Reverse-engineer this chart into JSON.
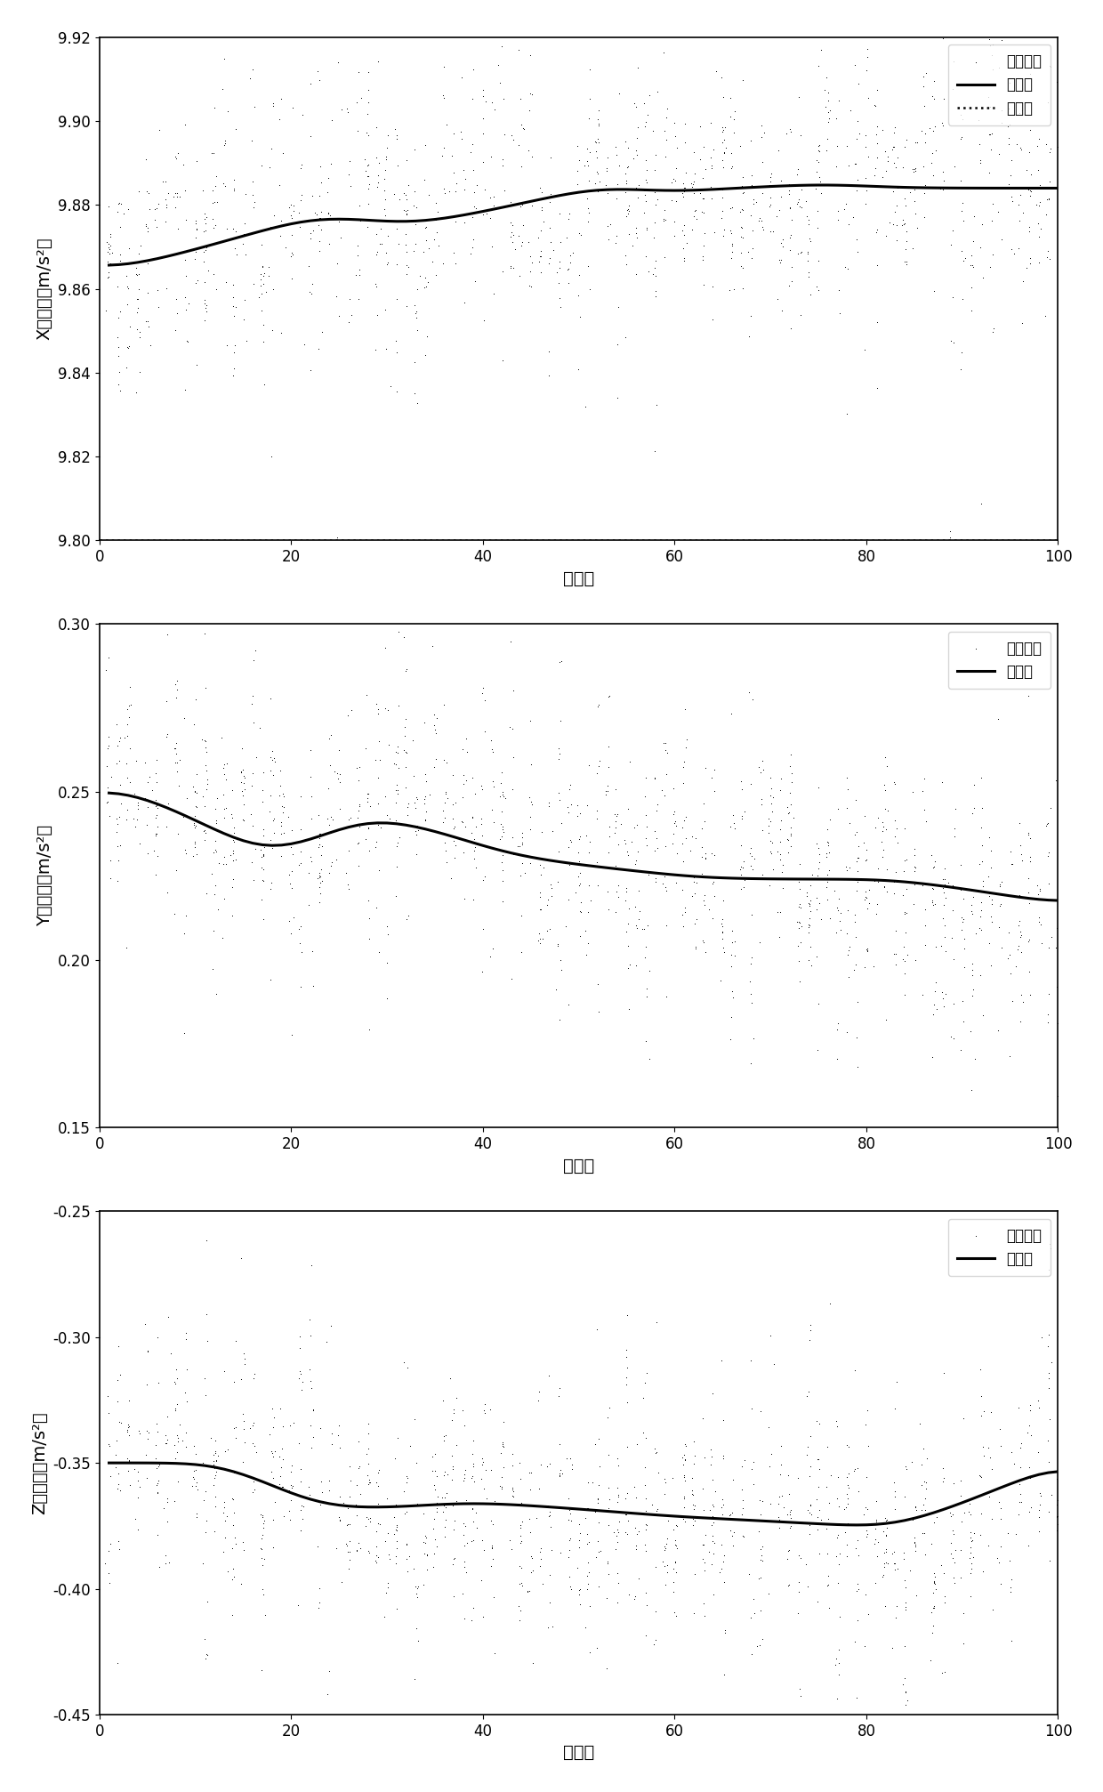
{
  "fig_width": 12.4,
  "fig_height": 20.14,
  "dpi": 100,
  "n_points": 100,
  "x_axis_label": "采样点",
  "plot1": {
    "ylabel": "X轴输出（m/s²）",
    "ylim": [
      9.8,
      9.92
    ],
    "yticks": [
      9.8,
      9.82,
      9.84,
      9.86,
      9.88,
      9.9,
      9.92
    ],
    "ideal_value": 9.8,
    "legend": [
      "测量信号",
      "处理后",
      "理想値"
    ]
  },
  "plot2": {
    "ylabel": "Y轴输出（m/s²）",
    "ylim": [
      0.15,
      0.3
    ],
    "yticks": [
      0.15,
      0.2,
      0.25,
      0.3
    ],
    "legend": [
      "测量信号",
      "处理后"
    ]
  },
  "plot3": {
    "ylabel": "Z轴输出（m/s²）",
    "ylim": [
      -0.45,
      -0.25
    ],
    "yticks": [
      -0.45,
      -0.4,
      -0.35,
      -0.3,
      -0.25
    ],
    "legend": [
      "测量信号",
      "处理后"
    ]
  },
  "background_color": "#ffffff",
  "font_size_label": 14,
  "font_size_tick": 12,
  "font_size_legend": 12
}
